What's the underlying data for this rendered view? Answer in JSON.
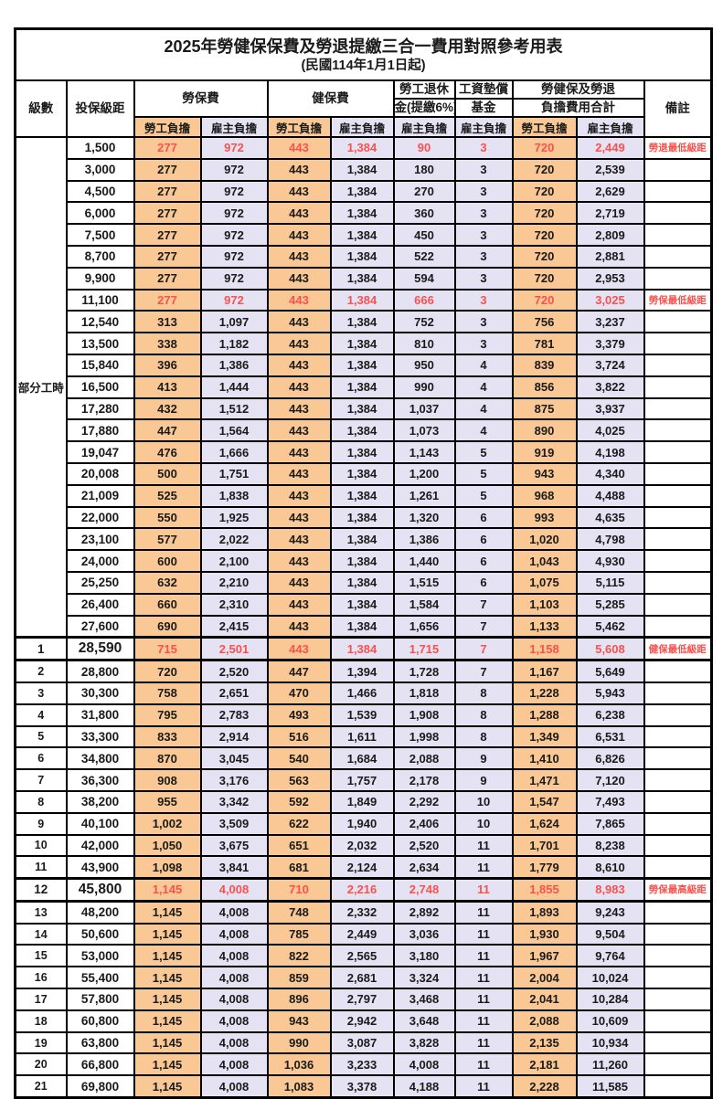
{
  "title": "2025年勞健保保費及勞退提繳三合一費用對照參考用表",
  "subtitle": "(民國114年1月1日起)",
  "columns": {
    "level": "級數",
    "salary": "投保級距",
    "labor_fee": "勞保費",
    "health_fee": "健保費",
    "pension_line1": "勞工退休",
    "pension_line2": "金(提繳6%)",
    "fund_line1": "工資墊償",
    "fund_line2": "基金",
    "total_line1": "勞健保及勞退",
    "total_line2": "負擔費用合計",
    "remark": "備註",
    "employee_burden": "勞工負擔",
    "employer_burden": "雇主負擔"
  },
  "part_time_label": "部分工時",
  "colors": {
    "employee_bg": "#F9C894",
    "employer_bg": "#E4E2F3",
    "highlight_red": "#F9524E",
    "border": "#000000"
  },
  "rows": [
    {
      "level": "",
      "salary": "1,500",
      "labor_emp": "277",
      "labor_er": "972",
      "health_emp": "443",
      "health_er": "1,384",
      "pension": "90",
      "fund": "3",
      "total_emp": "720",
      "total_er": "2,449",
      "note": "勞退最低級距",
      "red": true,
      "bold": false
    },
    {
      "level": "",
      "salary": "3,000",
      "labor_emp": "277",
      "labor_er": "972",
      "health_emp": "443",
      "health_er": "1,384",
      "pension": "180",
      "fund": "3",
      "total_emp": "720",
      "total_er": "2,539",
      "note": "",
      "red": false,
      "bold": false
    },
    {
      "level": "",
      "salary": "4,500",
      "labor_emp": "277",
      "labor_er": "972",
      "health_emp": "443",
      "health_er": "1,384",
      "pension": "270",
      "fund": "3",
      "total_emp": "720",
      "total_er": "2,629",
      "note": "",
      "red": false,
      "bold": false
    },
    {
      "level": "",
      "salary": "6,000",
      "labor_emp": "277",
      "labor_er": "972",
      "health_emp": "443",
      "health_er": "1,384",
      "pension": "360",
      "fund": "3",
      "total_emp": "720",
      "total_er": "2,719",
      "note": "",
      "red": false,
      "bold": false
    },
    {
      "level": "",
      "salary": "7,500",
      "labor_emp": "277",
      "labor_er": "972",
      "health_emp": "443",
      "health_er": "1,384",
      "pension": "450",
      "fund": "3",
      "total_emp": "720",
      "total_er": "2,809",
      "note": "",
      "red": false,
      "bold": false
    },
    {
      "level": "",
      "salary": "8,700",
      "labor_emp": "277",
      "labor_er": "972",
      "health_emp": "443",
      "health_er": "1,384",
      "pension": "522",
      "fund": "3",
      "total_emp": "720",
      "total_er": "2,881",
      "note": "",
      "red": false,
      "bold": false
    },
    {
      "level": "",
      "salary": "9,900",
      "labor_emp": "277",
      "labor_er": "972",
      "health_emp": "443",
      "health_er": "1,384",
      "pension": "594",
      "fund": "3",
      "total_emp": "720",
      "total_er": "2,953",
      "note": "",
      "red": false,
      "bold": false
    },
    {
      "level": "",
      "salary": "11,100",
      "labor_emp": "277",
      "labor_er": "972",
      "health_emp": "443",
      "health_er": "1,384",
      "pension": "666",
      "fund": "3",
      "total_emp": "720",
      "total_er": "3,025",
      "note": "勞保最低級距",
      "red": true,
      "bold": false
    },
    {
      "level": "",
      "salary": "12,540",
      "labor_emp": "313",
      "labor_er": "1,097",
      "health_emp": "443",
      "health_er": "1,384",
      "pension": "752",
      "fund": "3",
      "total_emp": "756",
      "total_er": "3,237",
      "note": "",
      "red": false,
      "bold": false
    },
    {
      "level": "",
      "salary": "13,500",
      "labor_emp": "338",
      "labor_er": "1,182",
      "health_emp": "443",
      "health_er": "1,384",
      "pension": "810",
      "fund": "3",
      "total_emp": "781",
      "total_er": "3,379",
      "note": "",
      "red": false,
      "bold": false
    },
    {
      "level": "",
      "salary": "15,840",
      "labor_emp": "396",
      "labor_er": "1,386",
      "health_emp": "443",
      "health_er": "1,384",
      "pension": "950",
      "fund": "4",
      "total_emp": "839",
      "total_er": "3,724",
      "note": "",
      "red": false,
      "bold": false
    },
    {
      "level": "",
      "salary": "16,500",
      "labor_emp": "413",
      "labor_er": "1,444",
      "health_emp": "443",
      "health_er": "1,384",
      "pension": "990",
      "fund": "4",
      "total_emp": "856",
      "total_er": "3,822",
      "note": "",
      "red": false,
      "bold": false
    },
    {
      "level": "",
      "salary": "17,280",
      "labor_emp": "432",
      "labor_er": "1,512",
      "health_emp": "443",
      "health_er": "1,384",
      "pension": "1,037",
      "fund": "4",
      "total_emp": "875",
      "total_er": "3,937",
      "note": "",
      "red": false,
      "bold": false
    },
    {
      "level": "",
      "salary": "17,880",
      "labor_emp": "447",
      "labor_er": "1,564",
      "health_emp": "443",
      "health_er": "1,384",
      "pension": "1,073",
      "fund": "4",
      "total_emp": "890",
      "total_er": "4,025",
      "note": "",
      "red": false,
      "bold": false
    },
    {
      "level": "",
      "salary": "19,047",
      "labor_emp": "476",
      "labor_er": "1,666",
      "health_emp": "443",
      "health_er": "1,384",
      "pension": "1,143",
      "fund": "5",
      "total_emp": "919",
      "total_er": "4,198",
      "note": "",
      "red": false,
      "bold": false
    },
    {
      "level": "",
      "salary": "20,008",
      "labor_emp": "500",
      "labor_er": "1,751",
      "health_emp": "443",
      "health_er": "1,384",
      "pension": "1,200",
      "fund": "5",
      "total_emp": "943",
      "total_er": "4,340",
      "note": "",
      "red": false,
      "bold": false
    },
    {
      "level": "",
      "salary": "21,009",
      "labor_emp": "525",
      "labor_er": "1,838",
      "health_emp": "443",
      "health_er": "1,384",
      "pension": "1,261",
      "fund": "5",
      "total_emp": "968",
      "total_er": "4,488",
      "note": "",
      "red": false,
      "bold": false
    },
    {
      "level": "",
      "salary": "22,000",
      "labor_emp": "550",
      "labor_er": "1,925",
      "health_emp": "443",
      "health_er": "1,384",
      "pension": "1,320",
      "fund": "6",
      "total_emp": "993",
      "total_er": "4,635",
      "note": "",
      "red": false,
      "bold": false
    },
    {
      "level": "",
      "salary": "23,100",
      "labor_emp": "577",
      "labor_er": "2,022",
      "health_emp": "443",
      "health_er": "1,384",
      "pension": "1,386",
      "fund": "6",
      "total_emp": "1,020",
      "total_er": "4,798",
      "note": "",
      "red": false,
      "bold": false
    },
    {
      "level": "",
      "salary": "24,000",
      "labor_emp": "600",
      "labor_er": "2,100",
      "health_emp": "443",
      "health_er": "1,384",
      "pension": "1,440",
      "fund": "6",
      "total_emp": "1,043",
      "total_er": "4,930",
      "note": "",
      "red": false,
      "bold": false
    },
    {
      "level": "",
      "salary": "25,250",
      "labor_emp": "632",
      "labor_er": "2,210",
      "health_emp": "443",
      "health_er": "1,384",
      "pension": "1,515",
      "fund": "6",
      "total_emp": "1,075",
      "total_er": "5,115",
      "note": "",
      "red": false,
      "bold": false
    },
    {
      "level": "",
      "salary": "26,400",
      "labor_emp": "660",
      "labor_er": "2,310",
      "health_emp": "443",
      "health_er": "1,384",
      "pension": "1,584",
      "fund": "7",
      "total_emp": "1,103",
      "total_er": "5,285",
      "note": "",
      "red": false,
      "bold": false
    },
    {
      "level": "",
      "salary": "27,600",
      "labor_emp": "690",
      "labor_er": "2,415",
      "health_emp": "443",
      "health_er": "1,384",
      "pension": "1,656",
      "fund": "7",
      "total_emp": "1,133",
      "total_er": "5,462",
      "note": "",
      "red": false,
      "bold": false
    },
    {
      "level": "1",
      "salary": "28,590",
      "labor_emp": "715",
      "labor_er": "2,501",
      "health_emp": "443",
      "health_er": "1,384",
      "pension": "1,715",
      "fund": "7",
      "total_emp": "1,158",
      "total_er": "5,608",
      "note": "健保最低級距",
      "red": true,
      "bold": true
    },
    {
      "level": "2",
      "salary": "28,800",
      "labor_emp": "720",
      "labor_er": "2,520",
      "health_emp": "447",
      "health_er": "1,394",
      "pension": "1,728",
      "fund": "7",
      "total_emp": "1,167",
      "total_er": "5,649",
      "note": "",
      "red": false,
      "bold": false
    },
    {
      "level": "3",
      "salary": "30,300",
      "labor_emp": "758",
      "labor_er": "2,651",
      "health_emp": "470",
      "health_er": "1,466",
      "pension": "1,818",
      "fund": "8",
      "total_emp": "1,228",
      "total_er": "5,943",
      "note": "",
      "red": false,
      "bold": false
    },
    {
      "level": "4",
      "salary": "31,800",
      "labor_emp": "795",
      "labor_er": "2,783",
      "health_emp": "493",
      "health_er": "1,539",
      "pension": "1,908",
      "fund": "8",
      "total_emp": "1,288",
      "total_er": "6,238",
      "note": "",
      "red": false,
      "bold": false
    },
    {
      "level": "5",
      "salary": "33,300",
      "labor_emp": "833",
      "labor_er": "2,914",
      "health_emp": "516",
      "health_er": "1,611",
      "pension": "1,998",
      "fund": "8",
      "total_emp": "1,349",
      "total_er": "6,531",
      "note": "",
      "red": false,
      "bold": false
    },
    {
      "level": "6",
      "salary": "34,800",
      "labor_emp": "870",
      "labor_er": "3,045",
      "health_emp": "540",
      "health_er": "1,684",
      "pension": "2,088",
      "fund": "9",
      "total_emp": "1,410",
      "total_er": "6,826",
      "note": "",
      "red": false,
      "bold": false
    },
    {
      "level": "7",
      "salary": "36,300",
      "labor_emp": "908",
      "labor_er": "3,176",
      "health_emp": "563",
      "health_er": "1,757",
      "pension": "2,178",
      "fund": "9",
      "total_emp": "1,471",
      "total_er": "7,120",
      "note": "",
      "red": false,
      "bold": false
    },
    {
      "level": "8",
      "salary": "38,200",
      "labor_emp": "955",
      "labor_er": "3,342",
      "health_emp": "592",
      "health_er": "1,849",
      "pension": "2,292",
      "fund": "10",
      "total_emp": "1,547",
      "total_er": "7,493",
      "note": "",
      "red": false,
      "bold": false
    },
    {
      "level": "9",
      "salary": "40,100",
      "labor_emp": "1,002",
      "labor_er": "3,509",
      "health_emp": "622",
      "health_er": "1,940",
      "pension": "2,406",
      "fund": "10",
      "total_emp": "1,624",
      "total_er": "7,865",
      "note": "",
      "red": false,
      "bold": false
    },
    {
      "level": "10",
      "salary": "42,000",
      "labor_emp": "1,050",
      "labor_er": "3,675",
      "health_emp": "651",
      "health_er": "2,032",
      "pension": "2,520",
      "fund": "11",
      "total_emp": "1,701",
      "total_er": "8,238",
      "note": "",
      "red": false,
      "bold": false
    },
    {
      "level": "11",
      "salary": "43,900",
      "labor_emp": "1,098",
      "labor_er": "3,841",
      "health_emp": "681",
      "health_er": "2,124",
      "pension": "2,634",
      "fund": "11",
      "total_emp": "1,779",
      "total_er": "8,610",
      "note": "",
      "red": false,
      "bold": false
    },
    {
      "level": "12",
      "salary": "45,800",
      "labor_emp": "1,145",
      "labor_er": "4,008",
      "health_emp": "710",
      "health_er": "2,216",
      "pension": "2,748",
      "fund": "11",
      "total_emp": "1,855",
      "total_er": "8,983",
      "note": "勞保最高級距",
      "red": true,
      "bold": true
    },
    {
      "level": "13",
      "salary": "48,200",
      "labor_emp": "1,145",
      "labor_er": "4,008",
      "health_emp": "748",
      "health_er": "2,332",
      "pension": "2,892",
      "fund": "11",
      "total_emp": "1,893",
      "total_er": "9,243",
      "note": "",
      "red": false,
      "bold": false
    },
    {
      "level": "14",
      "salary": "50,600",
      "labor_emp": "1,145",
      "labor_er": "4,008",
      "health_emp": "785",
      "health_er": "2,449",
      "pension": "3,036",
      "fund": "11",
      "total_emp": "1,930",
      "total_er": "9,504",
      "note": "",
      "red": false,
      "bold": false
    },
    {
      "level": "15",
      "salary": "53,000",
      "labor_emp": "1,145",
      "labor_er": "4,008",
      "health_emp": "822",
      "health_er": "2,565",
      "pension": "3,180",
      "fund": "11",
      "total_emp": "1,967",
      "total_er": "9,764",
      "note": "",
      "red": false,
      "bold": false
    },
    {
      "level": "16",
      "salary": "55,400",
      "labor_emp": "1,145",
      "labor_er": "4,008",
      "health_emp": "859",
      "health_er": "2,681",
      "pension": "3,324",
      "fund": "11",
      "total_emp": "2,004",
      "total_er": "10,024",
      "note": "",
      "red": false,
      "bold": false
    },
    {
      "level": "17",
      "salary": "57,800",
      "labor_emp": "1,145",
      "labor_er": "4,008",
      "health_emp": "896",
      "health_er": "2,797",
      "pension": "3,468",
      "fund": "11",
      "total_emp": "2,041",
      "total_er": "10,284",
      "note": "",
      "red": false,
      "bold": false
    },
    {
      "level": "18",
      "salary": "60,800",
      "labor_emp": "1,145",
      "labor_er": "4,008",
      "health_emp": "943",
      "health_er": "2,942",
      "pension": "3,648",
      "fund": "11",
      "total_emp": "2,088",
      "total_er": "10,609",
      "note": "",
      "red": false,
      "bold": false
    },
    {
      "level": "19",
      "salary": "63,800",
      "labor_emp": "1,145",
      "labor_er": "4,008",
      "health_emp": "990",
      "health_er": "3,087",
      "pension": "3,828",
      "fund": "11",
      "total_emp": "2,135",
      "total_er": "10,934",
      "note": "",
      "red": false,
      "bold": false
    },
    {
      "level": "20",
      "salary": "66,800",
      "labor_emp": "1,145",
      "labor_er": "4,008",
      "health_emp": "1,036",
      "health_er": "3,233",
      "pension": "4,008",
      "fund": "11",
      "total_emp": "2,181",
      "total_er": "11,260",
      "note": "",
      "red": false,
      "bold": false
    },
    {
      "level": "21",
      "salary": "69,800",
      "labor_emp": "1,145",
      "labor_er": "4,008",
      "health_emp": "1,083",
      "health_er": "3,378",
      "pension": "4,188",
      "fund": "11",
      "total_emp": "2,228",
      "total_er": "11,585",
      "note": "",
      "red": false,
      "bold": false
    }
  ]
}
